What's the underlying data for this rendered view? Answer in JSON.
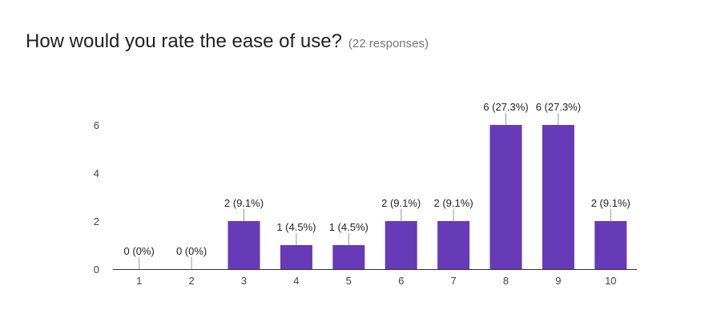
{
  "question": {
    "title": "How would you rate the ease of use?",
    "responses": "(22 responses)"
  },
  "colors": {
    "bar": "#673ab7",
    "axis": "#333333",
    "leader": "#999999"
  },
  "chart_data": {
    "type": "bar",
    "title": "How would you rate the ease of use?",
    "subtitle": "(22 responses)",
    "xlabel": "",
    "ylabel": "",
    "categories": [
      "1",
      "2",
      "3",
      "4",
      "5",
      "6",
      "7",
      "8",
      "9",
      "10"
    ],
    "values": [
      0,
      0,
      2,
      1,
      1,
      2,
      2,
      6,
      6,
      2
    ],
    "data_labels": [
      "0 (0%)",
      "0 (0%)",
      "2 (9.1%)",
      "1 (4.5%)",
      "1 (4.5%)",
      "2 (9.1%)",
      "2 (9.1%)",
      "6 (27.3%)",
      "6 (27.3%)",
      "2 (9.1%)"
    ],
    "yticks": [
      "0",
      "2",
      "4",
      "6"
    ],
    "ylim": [
      0,
      6
    ],
    "grid": false,
    "legend": "none"
  }
}
